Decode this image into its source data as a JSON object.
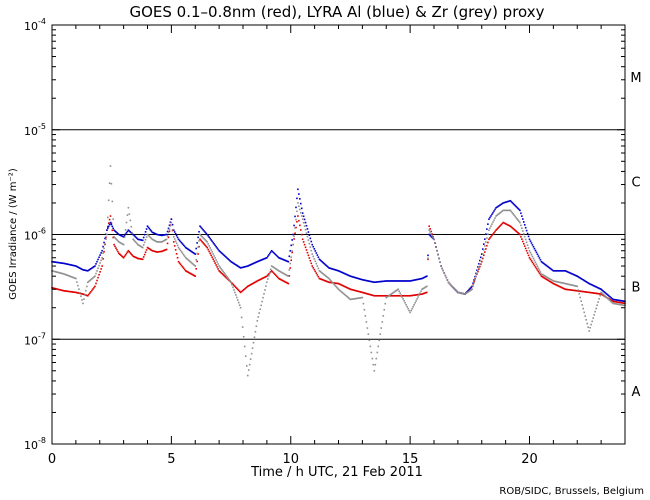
{
  "chart_data": {
    "type": "line",
    "title": "GOES 0.1–0.8nm (red), LYRA Al (blue) & Zr (grey) proxy",
    "xlabel": "Time / h UTC, 21 Feb 2011",
    "ylabel": "GOES Irradiance / (W m⁻²)",
    "xlim": [
      0,
      24
    ],
    "ylim": [
      1e-08,
      0.0001
    ],
    "yscale": "log",
    "x_ticks": [
      {
        "value": 0,
        "label": "0"
      },
      {
        "value": 5,
        "label": "5"
      },
      {
        "value": 10,
        "label": "10"
      },
      {
        "value": 15,
        "label": "15"
      },
      {
        "value": 20,
        "label": "20"
      }
    ],
    "y_ticks": [
      {
        "value": 0.0001,
        "base": "10",
        "exp": "-4"
      },
      {
        "value": 1e-05,
        "base": "10",
        "exp": "-5"
      },
      {
        "value": 1e-06,
        "base": "10",
        "exp": "-6"
      },
      {
        "value": 1e-07,
        "base": "10",
        "exp": "-7"
      },
      {
        "value": 1e-08,
        "base": "10",
        "exp": "-8"
      }
    ],
    "flare_class_lines": [
      1e-05,
      1e-06,
      1e-07
    ],
    "flare_classes": [
      {
        "label": "M",
        "value": 3.2e-05
      },
      {
        "label": "C",
        "value": 3.2e-06
      },
      {
        "label": "B",
        "value": 3.2e-07
      },
      {
        "label": "A",
        "value": 3.2e-08
      }
    ],
    "credit": "ROB/SIDC, Brussels, Belgium",
    "series": [
      {
        "name": "GOES 0.1-0.8nm",
        "color": "#e00000",
        "x": [
          0,
          0.5,
          1,
          1.3,
          1.5,
          1.8,
          2.1,
          2.3,
          2.45,
          2.6,
          2.8,
          3.0,
          3.2,
          3.4,
          3.6,
          3.8,
          4.0,
          4.2,
          4.4,
          4.6,
          4.8,
          5.0,
          5.1,
          5.3,
          5.6,
          6.0,
          6.2,
          6.5,
          7.0,
          7.5,
          7.9,
          8.2,
          8.6,
          9.0,
          9.2,
          9.5,
          9.9,
          10.1,
          10.3,
          10.5,
          10.9,
          11.2,
          11.6,
          12.0,
          12.5,
          13.0,
          13.5,
          14.0,
          14.5,
          15.0,
          15.5,
          15.7,
          15.8,
          16.0,
          16.3,
          16.6,
          17.0,
          17.3,
          17.6,
          18.0,
          18.3,
          18.6,
          18.9,
          19.2,
          19.6,
          20.0,
          20.5,
          21.0,
          21.5,
          22.0,
          22.5,
          23.0,
          23.5,
          24.0
        ],
        "values": [
          3.1e-07,
          2.9e-07,
          2.8e-07,
          2.7e-07,
          2.6e-07,
          3.2e-07,
          5e-07,
          1.1e-06,
          1.5e-06,
          8e-07,
          6.6e-07,
          6e-07,
          7e-07,
          6.2e-07,
          5.9e-07,
          5.8e-07,
          7.5e-07,
          7e-07,
          6.8e-07,
          6.9e-07,
          7.2e-07,
          1.4e-06,
          8.5e-07,
          5.5e-07,
          4.5e-07,
          4e-07,
          9e-07,
          7.5e-07,
          4.5e-07,
          3.5e-07,
          2.8e-07,
          3.2e-07,
          3.6e-07,
          4e-07,
          4.5e-07,
          3.8e-07,
          3.4e-07,
          8e-07,
          1.5e-06,
          9e-07,
          5e-07,
          3.8e-07,
          3.5e-07,
          3.4e-07,
          3e-07,
          2.8e-07,
          2.6e-07,
          2.6e-07,
          2.6e-07,
          2.6e-07,
          2.7e-07,
          2.8e-07,
          1.2e-06,
          9e-07,
          5e-07,
          3.5e-07,
          2.8e-07,
          2.7e-07,
          3.2e-07,
          5.5e-07,
          9e-07,
          1.1e-06,
          1.3e-06,
          1.2e-06,
          1e-06,
          6e-07,
          4e-07,
          3.4e-07,
          3e-07,
          2.9e-07,
          2.8e-07,
          2.7e-07,
          2.3e-07,
          2.2e-07
        ]
      },
      {
        "name": "LYRA Al proxy",
        "color": "#0000cc",
        "x": [
          0,
          0.5,
          1,
          1.3,
          1.5,
          1.8,
          2.1,
          2.3,
          2.45,
          2.6,
          2.8,
          3.0,
          3.2,
          3.4,
          3.6,
          3.8,
          4.0,
          4.2,
          4.4,
          4.6,
          4.8,
          5.0,
          5.1,
          5.3,
          5.6,
          6.0,
          6.2,
          6.5,
          7.0,
          7.5,
          7.9,
          8.2,
          8.6,
          9.0,
          9.2,
          9.5,
          9.9,
          10.1,
          10.3,
          10.5,
          10.9,
          11.2,
          11.6,
          12.0,
          12.5,
          13.0,
          13.5,
          14.0,
          14.5,
          15.0,
          15.5,
          15.7,
          15.8,
          16.0,
          16.3,
          16.6,
          17.0,
          17.3,
          17.6,
          18.0,
          18.3,
          18.6,
          18.9,
          19.2,
          19.6,
          20.0,
          20.5,
          21.0,
          21.5,
          22.0,
          22.5,
          23.0,
          23.5,
          24.0
        ],
        "values": [
          5.5e-07,
          5.3e-07,
          5e-07,
          4.6e-07,
          4.5e-07,
          5e-07,
          7e-07,
          1.1e-06,
          1.3e-06,
          1.1e-06,
          1e-06,
          9.5e-07,
          1.1e-06,
          1e-06,
          9e-07,
          8.8e-07,
          1.2e-06,
          1.05e-06,
          1e-06,
          9.8e-07,
          1e-06,
          1.4e-06,
          1.1e-06,
          9e-07,
          7.5e-07,
          6.5e-07,
          1.2e-06,
          1e-06,
          7e-07,
          5.5e-07,
          4.8e-07,
          5e-07,
          5.5e-07,
          6e-07,
          7e-07,
          6e-07,
          5.5e-07,
          1e-06,
          2.7e-06,
          1.6e-06,
          8e-07,
          5.8e-07,
          4.8e-07,
          4.5e-07,
          4e-07,
          3.7e-07,
          3.5e-07,
          3.6e-07,
          3.6e-07,
          3.6e-07,
          3.8e-07,
          4e-07,
          1e-06,
          9e-07,
          5e-07,
          3.5e-07,
          2.8e-07,
          2.7e-07,
          3.2e-07,
          6.5e-07,
          1.4e-06,
          1.8e-06,
          2e-06,
          2.1e-06,
          1.7e-06,
          9e-07,
          5.5e-07,
          4.5e-07,
          4.5e-07,
          4e-07,
          3.4e-07,
          3e-07,
          2.4e-07,
          2.3e-07
        ]
      },
      {
        "name": "LYRA Zr proxy",
        "color": "#909090",
        "x": [
          0,
          0.5,
          1,
          1.3,
          1.5,
          1.8,
          2.1,
          2.3,
          2.45,
          2.6,
          2.8,
          3.0,
          3.2,
          3.4,
          3.6,
          3.8,
          4.0,
          4.2,
          4.4,
          4.6,
          4.8,
          5.0,
          5.1,
          5.3,
          5.6,
          6.0,
          6.2,
          6.5,
          7.0,
          7.5,
          7.9,
          8.2,
          8.6,
          9.0,
          9.2,
          9.5,
          9.9,
          10.1,
          10.3,
          10.5,
          10.9,
          11.2,
          11.6,
          12.0,
          12.5,
          13.0,
          13.5,
          14.0,
          14.5,
          15.0,
          15.5,
          15.7,
          15.8,
          16.0,
          16.3,
          16.6,
          17.0,
          17.3,
          17.6,
          18.0,
          18.3,
          18.6,
          18.9,
          19.2,
          19.6,
          20.0,
          20.5,
          21.0,
          21.5,
          22.0,
          22.5,
          23.0,
          23.5,
          24.0
        ],
        "values": [
          4.5e-07,
          4.2e-07,
          3.8e-07,
          2.2e-07,
          3.5e-07,
          4e-07,
          6e-07,
          1e-06,
          4.5e-06,
          9.5e-07,
          8.5e-07,
          8e-07,
          1.8e-06,
          9e-07,
          8e-07,
          7.5e-07,
          1e-06,
          9e-07,
          8.5e-07,
          8.5e-07,
          9e-07,
          1.3e-06,
          9.5e-07,
          7.5e-07,
          6e-07,
          5e-07,
          1e-06,
          8.5e-07,
          5e-07,
          3.5e-07,
          2e-07,
          4.5e-08,
          1.5e-07,
          3.5e-07,
          5e-07,
          4.5e-07,
          4e-07,
          8e-07,
          2e-06,
          1.4e-06,
          6.5e-07,
          4.5e-07,
          3.8e-07,
          3e-07,
          2.4e-07,
          2.5e-07,
          5e-08,
          2.5e-07,
          3e-07,
          1.8e-07,
          3e-07,
          3.2e-07,
          1.1e-06,
          9e-07,
          5e-07,
          3.5e-07,
          2.8e-07,
          2.7e-07,
          3e-07,
          6e-07,
          1.1e-06,
          1.5e-06,
          1.7e-06,
          1.7e-06,
          1.3e-06,
          7e-07,
          4.2e-07,
          3.6e-07,
          3.4e-07,
          3.2e-07,
          1.2e-07,
          2.8e-07,
          2.2e-07,
          2.1e-07
        ]
      }
    ]
  }
}
